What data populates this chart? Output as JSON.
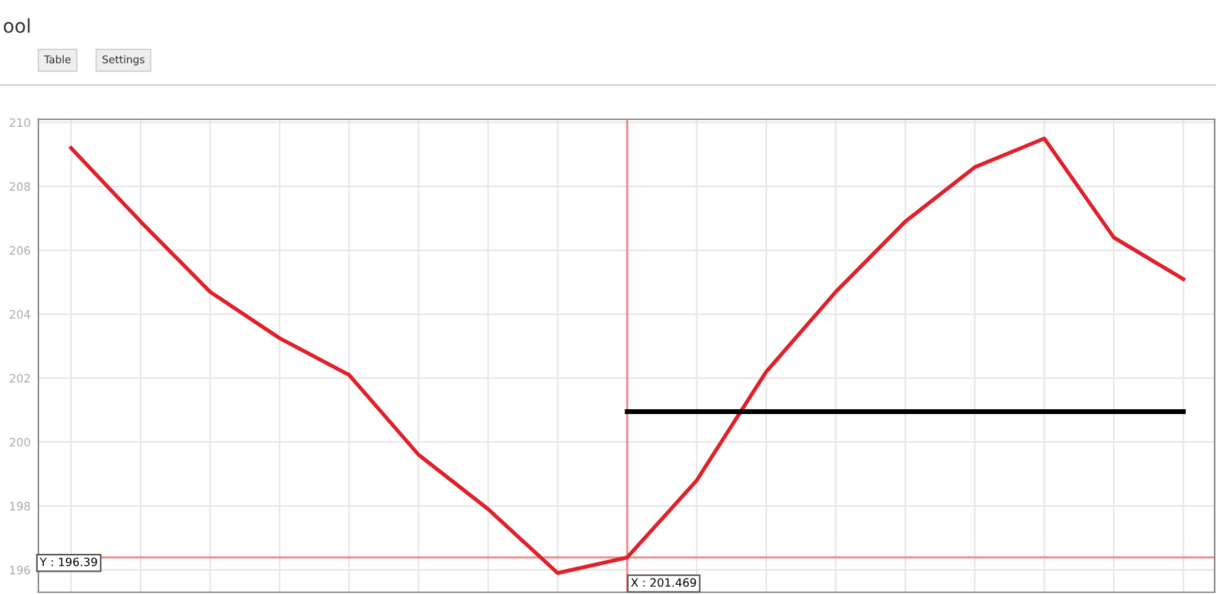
{
  "chart_data": {
    "type": "line",
    "title": "ool",
    "categories": [
      null,
      null,
      null,
      null,
      null,
      null,
      null,
      null,
      null,
      null,
      null,
      null,
      null,
      null,
      null,
      null,
      null
    ],
    "series": [
      {
        "color": "#e0202a",
        "values": [
          209.2,
          206.9,
          204.7,
          203.25,
          202.1,
          199.6,
          197.9,
          195.9,
          196.39,
          198.8,
          202.2,
          204.7,
          206.9,
          208.6,
          209.5,
          206.4,
          205.1
        ]
      },
      {
        "color": "#000000",
        "values": [
          null,
          null,
          null,
          null,
          null,
          null,
          null,
          null,
          200.95,
          200.95,
          200.95,
          200.95,
          200.95,
          200.95,
          200.95,
          200.95,
          200.95
        ]
      }
    ],
    "ylim": [
      195.3,
      210.1
    ],
    "yticks": [
      196,
      198,
      200,
      202,
      204,
      206,
      208,
      210
    ],
    "ref_lines": [
      {
        "axis": "y",
        "value": 196.39,
        "label": "Y : 196.39",
        "color": "#f08080"
      }
    ],
    "annotations": [
      "Table",
      "Settings",
      "X : 201.469"
    ],
    "grid": true,
    "marker": "none",
    "line_style": "solid"
  }
}
